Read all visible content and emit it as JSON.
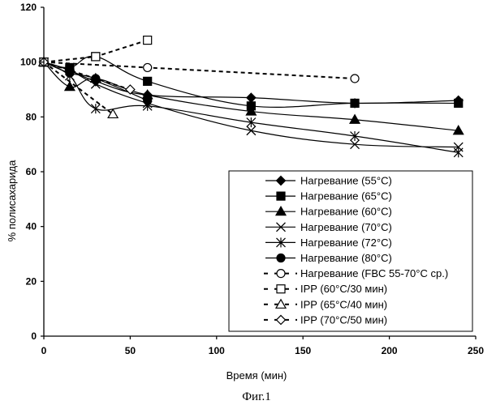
{
  "chart_data": {
    "type": "line",
    "xlabel": "Время (мин)",
    "ylabel": "% полисахарида",
    "xlim": [
      0,
      250
    ],
    "ylim": [
      0,
      120
    ],
    "xticks": [
      0,
      50,
      100,
      150,
      200,
      250
    ],
    "yticks": [
      0,
      20,
      40,
      60,
      80,
      100,
      120
    ],
    "grid": false,
    "legend_position": "bottom-right",
    "caption": "Фиг.1",
    "series": [
      {
        "name": "Нагревание (55°C)",
        "marker": "diamond-filled",
        "dashed": false,
        "x": [
          0,
          15,
          30,
          60,
          120,
          180,
          240
        ],
        "y": [
          100,
          97,
          93,
          88,
          87,
          85,
          86
        ]
      },
      {
        "name": "Нагревание (65°C)",
        "marker": "square-filled",
        "dashed": false,
        "x": [
          0,
          15,
          30,
          60,
          120,
          180,
          240
        ],
        "y": [
          100,
          98,
          102,
          93,
          84,
          85,
          85
        ]
      },
      {
        "name": "Нагревание (60°C)",
        "marker": "triangle-filled",
        "dashed": false,
        "x": [
          0,
          15,
          30,
          60,
          120,
          180,
          240
        ],
        "y": [
          100,
          91,
          94,
          88,
          82,
          79,
          75
        ]
      },
      {
        "name": "Нагревание (70°C)",
        "marker": "x",
        "dashed": false,
        "x": [
          0,
          15,
          30,
          60,
          120,
          180,
          240
        ],
        "y": [
          100,
          97,
          92,
          85,
          75,
          70,
          69
        ]
      },
      {
        "name": "Нагревание (72°C)",
        "marker": "asterisk",
        "dashed": false,
        "x": [
          0,
          15,
          30,
          60,
          120,
          180,
          240
        ],
        "y": [
          100,
          95,
          83,
          84,
          78,
          73,
          67
        ]
      },
      {
        "name": "Нагревание (80°C)",
        "marker": "circle-filled",
        "dashed": false,
        "x": [
          0,
          15,
          30,
          60
        ],
        "y": [
          100,
          96,
          94,
          86
        ]
      },
      {
        "name": "Нагревание (FBC 55-70°C ср.)",
        "marker": "circle-open",
        "dashed": true,
        "x": [
          0,
          60,
          180
        ],
        "y": [
          100,
          98,
          94
        ]
      },
      {
        "name": "IPP (60°C/30 мин)",
        "marker": "square-open",
        "dashed": true,
        "x": [
          0,
          30,
          60
        ],
        "y": [
          100,
          102,
          108
        ]
      },
      {
        "name": "IPP (65°C/40 мин)",
        "marker": "triangle-open",
        "dashed": true,
        "x": [
          0,
          40
        ],
        "y": [
          100,
          81
        ]
      },
      {
        "name": "IPP (70°C/50 мин)",
        "marker": "diamond-open",
        "dashed": true,
        "x": [
          0,
          50
        ],
        "y": [
          100,
          90
        ]
      }
    ]
  }
}
